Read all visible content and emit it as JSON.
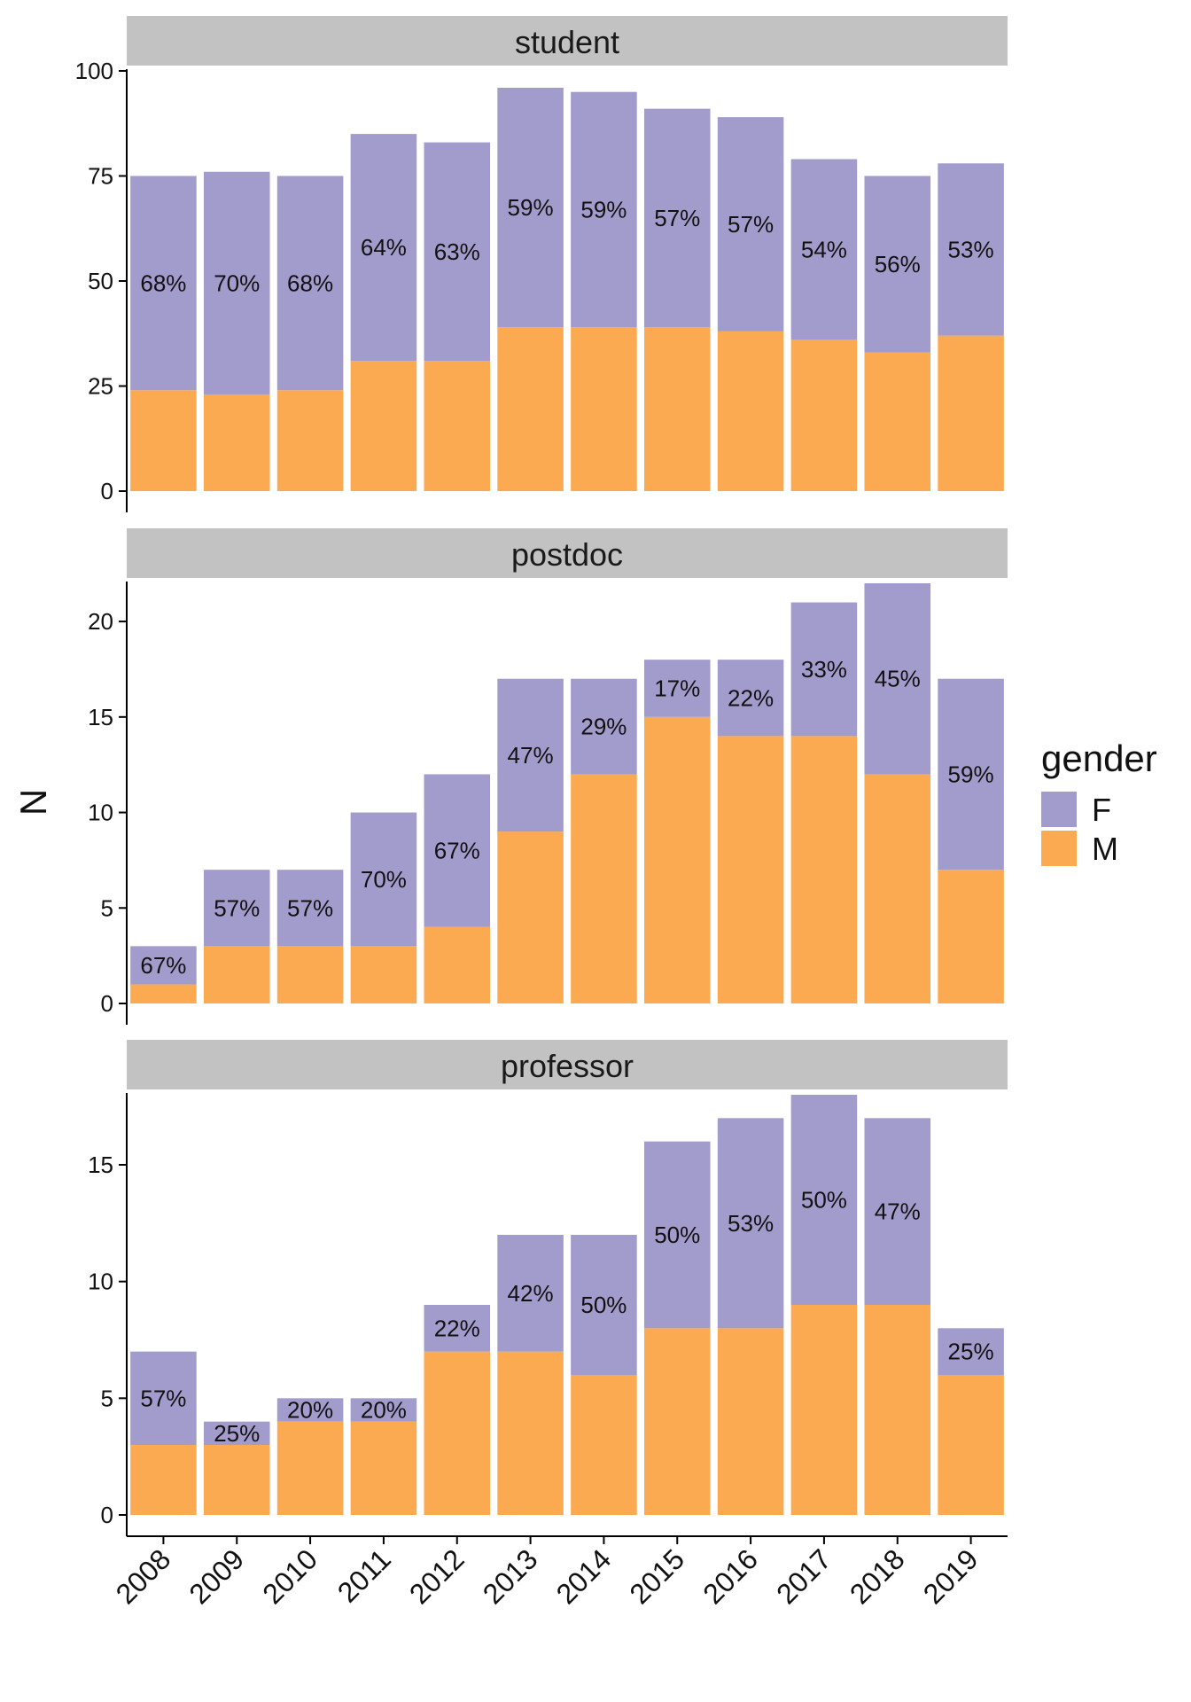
{
  "chart_data": {
    "type": "bar",
    "stacked": true,
    "categories": [
      "2008",
      "2009",
      "2010",
      "2011",
      "2012",
      "2013",
      "2014",
      "2015",
      "2016",
      "2017",
      "2018",
      "2019"
    ],
    "ylabel": "N",
    "legend": {
      "title": "gender",
      "placement": "right",
      "entries": [
        {
          "name": "F",
          "color": "#a29ccc"
        },
        {
          "name": "M",
          "color": "#fbaa52"
        }
      ]
    },
    "facets": [
      {
        "title": "student",
        "ylim": [
          0,
          100
        ],
        "yticks": [
          0,
          25,
          50,
          75,
          100
        ],
        "series": [
          {
            "name": "M",
            "values": [
              24,
              23,
              24,
              31,
              31,
              39,
              39,
              39,
              38,
              36,
              33,
              37
            ]
          },
          {
            "name": "F",
            "values": [
              51,
              53,
              51,
              54,
              52,
              57,
              56,
              52,
              51,
              43,
              42,
              41
            ]
          }
        ],
        "labels": [
          "68%",
          "70%",
          "68%",
          "64%",
          "63%",
          "59%",
          "59%",
          "57%",
          "57%",
          "54%",
          "56%",
          "53%"
        ]
      },
      {
        "title": "postdoc",
        "ylim": [
          0,
          22
        ],
        "yticks": [
          0,
          5,
          10,
          15,
          20
        ],
        "series": [
          {
            "name": "M",
            "values": [
              1,
              3,
              3,
              3,
              4,
              9,
              12,
              15,
              14,
              14,
              12,
              7
            ]
          },
          {
            "name": "F",
            "values": [
              2,
              4,
              4,
              7,
              8,
              8,
              5,
              3,
              4,
              7,
              10,
              10
            ]
          }
        ],
        "labels": [
          "67%",
          "57%",
          "57%",
          "70%",
          "67%",
          "47%",
          "29%",
          "17%",
          "22%",
          "33%",
          "45%",
          "59%"
        ]
      },
      {
        "title": "professor",
        "ylim": [
          0,
          18
        ],
        "yticks": [
          0,
          5,
          10,
          15
        ],
        "series": [
          {
            "name": "M",
            "values": [
              3,
              3,
              4,
              4,
              7,
              7,
              6,
              8,
              8,
              9,
              9,
              6
            ]
          },
          {
            "name": "F",
            "values": [
              4,
              1,
              1,
              1,
              2,
              5,
              6,
              8,
              9,
              9,
              8,
              2
            ]
          }
        ],
        "labels": [
          "57%",
          "25%",
          "20%",
          "20%",
          "22%",
          "42%",
          "50%",
          "50%",
          "53%",
          "50%",
          "47%",
          "25%"
        ]
      }
    ]
  }
}
